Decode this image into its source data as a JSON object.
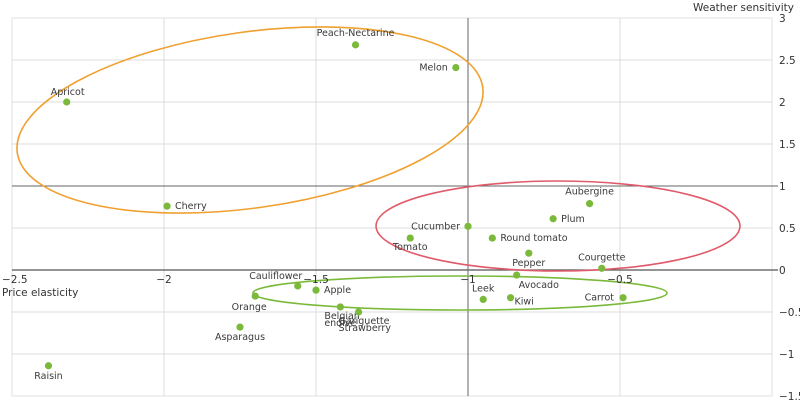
{
  "chart_data": {
    "type": "scatter",
    "title": "",
    "xlabel": "Price elasticity",
    "ylabel": "Weather sensitivity",
    "xlim": [
      -2.5,
      0
    ],
    "ylim": [
      -1.5,
      3
    ],
    "grid": true,
    "x_ticks": [
      "-2.5",
      "-2",
      "-1.5",
      "-1",
      "-0.5"
    ],
    "y_ticks": [
      "3",
      "2.5",
      "2",
      "1.5",
      "1",
      "0.5",
      "0",
      "-0.5",
      "-1",
      "-1.5"
    ],
    "point_color": "#7ab93a",
    "points": [
      {
        "label": "Apricot",
        "x": -2.32,
        "y": 2.0
      },
      {
        "label": "Peach-Nectarine",
        "x": -1.37,
        "y": 2.68
      },
      {
        "label": "Melon",
        "x": -1.04,
        "y": 2.41
      },
      {
        "label": "Cherry",
        "x": -1.99,
        "y": 0.76
      },
      {
        "label": "Aubergine",
        "x": -0.6,
        "y": 0.79
      },
      {
        "label": "Plum",
        "x": -0.72,
        "y": 0.61
      },
      {
        "label": "Cucumber",
        "x": -1.0,
        "y": 0.52
      },
      {
        "label": "Round tomato",
        "x": -0.92,
        "y": 0.38
      },
      {
        "label": "Tomato",
        "x": -1.19,
        "y": 0.38
      },
      {
        "label": "Pepper",
        "x": -0.8,
        "y": 0.2
      },
      {
        "label": "Courgette",
        "x": -0.56,
        "y": 0.02
      },
      {
        "label": "Avocado",
        "x": -0.84,
        "y": -0.06
      },
      {
        "label": "Leek",
        "x": -0.95,
        "y": -0.35
      },
      {
        "label": "Kiwi",
        "x": -0.86,
        "y": -0.33
      },
      {
        "label": "Carrot",
        "x": -0.49,
        "y": -0.33
      },
      {
        "label": "Cauliflower",
        "x": -1.56,
        "y": -0.19
      },
      {
        "label": "Apple",
        "x": -1.5,
        "y": -0.24
      },
      {
        "label": "Orange",
        "x": -1.7,
        "y": -0.31
      },
      {
        "label": "Belgian endive",
        "x": -1.42,
        "y": -0.44
      },
      {
        "label": "Gariguette Strawberry",
        "x": -1.36,
        "y": -0.5
      },
      {
        "label": "Asparagus",
        "x": -1.75,
        "y": -0.68
      },
      {
        "label": "Raisin",
        "x": -2.38,
        "y": -1.14
      }
    ],
    "groups": [
      {
        "name": "orange-cluster",
        "color": "#f0a030",
        "members": [
          "Apricot",
          "Peach-Nectarine",
          "Melon",
          "Cherry"
        ]
      },
      {
        "name": "red-cluster",
        "color": "#e05a6a",
        "members": [
          "Aubergine",
          "Plum",
          "Cucumber",
          "Round tomato",
          "Tomato",
          "Pepper",
          "Courgette"
        ]
      },
      {
        "name": "green-cluster",
        "color": "#7ab93a",
        "members": [
          "Cauliflower",
          "Apple",
          "Orange",
          "Belgian endive",
          "Gariguette Strawberry",
          "Avocado",
          "Leek",
          "Kiwi",
          "Carrot"
        ]
      }
    ]
  }
}
